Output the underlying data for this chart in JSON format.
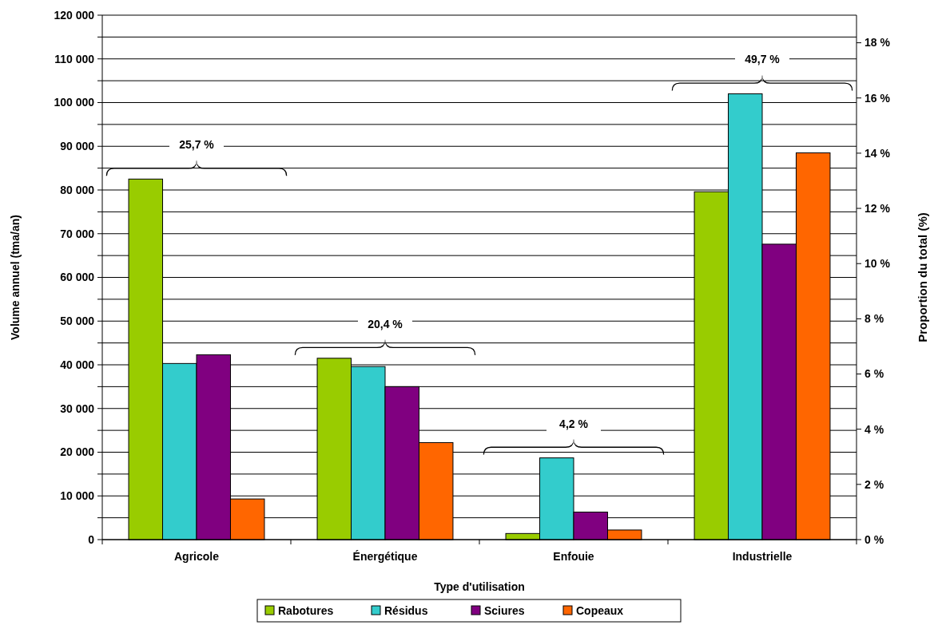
{
  "chart_data": {
    "type": "bar",
    "xlabel": "Type d'utilisation",
    "ylabel": "Volume annuel (tma/an)",
    "y2label": "Proportion du total (%)",
    "categories": [
      "Agricole",
      "Énergétique",
      "Enfouie",
      "Industrielle"
    ],
    "series": [
      {
        "name": "Rabotures",
        "color": "#99cc00",
        "values": [
          82500,
          41500,
          1400,
          79600
        ]
      },
      {
        "name": "Résidus",
        "color": "#33cccc",
        "values": [
          40300,
          39600,
          18700,
          102000
        ]
      },
      {
        "name": "Sciures",
        "color": "#800080",
        "values": [
          42300,
          35000,
          6300,
          67600
        ]
      },
      {
        "name": "Copeaux",
        "color": "#ff6600",
        "values": [
          9300,
          22200,
          2200,
          88500
        ]
      }
    ],
    "ylim": [
      0,
      120000
    ],
    "yticks": [
      {
        "value": 0,
        "label": "0"
      },
      {
        "value": 5000,
        "label": null
      },
      {
        "value": 10000,
        "label": "10 000"
      },
      {
        "value": 15000,
        "label": null
      },
      {
        "value": 20000,
        "label": "20 000"
      },
      {
        "value": 25000,
        "label": null
      },
      {
        "value": 30000,
        "label": "30 000"
      },
      {
        "value": 35000,
        "label": null
      },
      {
        "value": 40000,
        "label": "40 000"
      },
      {
        "value": 45000,
        "label": null
      },
      {
        "value": 50000,
        "label": "50 000"
      },
      {
        "value": 55000,
        "label": null
      },
      {
        "value": 60000,
        "label": "60 000"
      },
      {
        "value": 65000,
        "label": null
      },
      {
        "value": 70000,
        "label": "70 000"
      },
      {
        "value": 75000,
        "label": null
      },
      {
        "value": 80000,
        "label": "80 000"
      },
      {
        "value": 85000,
        "label": null
      },
      {
        "value": 90000,
        "label": "90 000"
      },
      {
        "value": 95000,
        "label": null
      },
      {
        "value": 100000,
        "label": "100 000"
      },
      {
        "value": 105000,
        "label": null
      },
      {
        "value": 110000,
        "label": "110 000"
      },
      {
        "value": 115000,
        "label": null
      },
      {
        "value": 120000,
        "label": "120 000"
      }
    ],
    "y2lim": [
      0,
      19
    ],
    "y2ticks": [
      {
        "value": 0,
        "label": "0 %"
      },
      {
        "value": 2,
        "label": "2 %"
      },
      {
        "value": 4,
        "label": "4 %"
      },
      {
        "value": 6,
        "label": "6 %"
      },
      {
        "value": 8,
        "label": "8 %"
      },
      {
        "value": 10,
        "label": "10 %"
      },
      {
        "value": 12,
        "label": "12 %"
      },
      {
        "value": 14,
        "label": "14 %"
      },
      {
        "value": 16,
        "label": "16 %"
      },
      {
        "value": 18,
        "label": "18 %"
      }
    ],
    "grid": "y",
    "legend": "bottom",
    "annotations": [
      "25,7 %",
      "20,4 %",
      "4,2 %",
      "49,7 %"
    ]
  }
}
